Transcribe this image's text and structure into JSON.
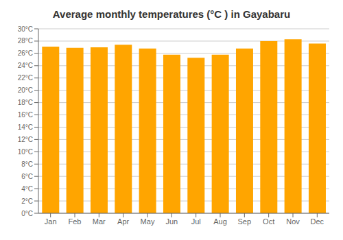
{
  "chart_data": {
    "type": "bar",
    "title": "Average monthly temperatures (°C ) in Gayabaru",
    "categories": [
      "Jan",
      "Feb",
      "Mar",
      "Apr",
      "May",
      "Jun",
      "Jul",
      "Aug",
      "Sep",
      "Oct",
      "Nov",
      "Dec"
    ],
    "values": [
      27.1,
      26.9,
      27.0,
      27.4,
      26.8,
      25.8,
      25.3,
      25.8,
      26.8,
      28.0,
      28.3,
      27.6
    ],
    "color": "#FFA500",
    "ylim": [
      0,
      30
    ],
    "yticks": [
      {
        "value": 0,
        "label": "0°C"
      },
      {
        "value": 2,
        "label": "2°C"
      },
      {
        "value": 4,
        "label": "4°C"
      },
      {
        "value": 6,
        "label": "6°C"
      },
      {
        "value": 8,
        "label": "8°C"
      },
      {
        "value": 10,
        "label": "10°C"
      },
      {
        "value": 12,
        "label": "12°C"
      },
      {
        "value": 14,
        "label": "14°C"
      },
      {
        "value": 16,
        "label": "16°C"
      },
      {
        "value": 18,
        "label": "18°C"
      },
      {
        "value": 20,
        "label": "20°C"
      },
      {
        "value": 22,
        "label": "22°C"
      },
      {
        "value": 24,
        "label": "24°C"
      },
      {
        "value": 26,
        "label": "26°C"
      },
      {
        "value": 28,
        "label": "28°C"
      },
      {
        "value": 30,
        "label": "30°C"
      }
    ],
    "grid": true
  }
}
